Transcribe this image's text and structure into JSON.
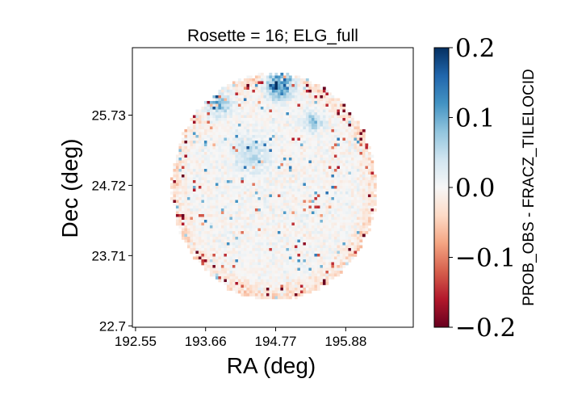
{
  "chart_data": {
    "type": "heatmap",
    "title": "Rosette = 16; ELG_full",
    "xlabel": "RA (deg)",
    "ylabel": "Dec (deg)",
    "xticks": [
      192.55,
      193.66,
      194.77,
      195.88
    ],
    "xtick_labels": [
      "192.55",
      "193.66",
      "194.77",
      "195.88"
    ],
    "yticks": [
      22.7,
      23.71,
      24.72,
      25.73
    ],
    "ytick_labels": [
      "22.7",
      "23.71",
      "24.72",
      "25.73"
    ],
    "xlim": [
      192.5,
      196.95
    ],
    "ylim": [
      22.68,
      26.7
    ],
    "field_center": [
      194.72,
      24.72
    ],
    "field_radius_deg": 1.62,
    "colorbar": {
      "label": "PROB_OBS - FRACZ_TILELOCID",
      "colormap": "RdBu",
      "vmin": -0.2,
      "vmax": 0.2,
      "ticks": [
        0.2,
        0.1,
        0.0,
        -0.1,
        -0.2
      ],
      "tick_labels": [
        "0.2",
        "0.1",
        "0.0",
        "−0.1",
        "−0.2"
      ]
    },
    "grid": false
  }
}
